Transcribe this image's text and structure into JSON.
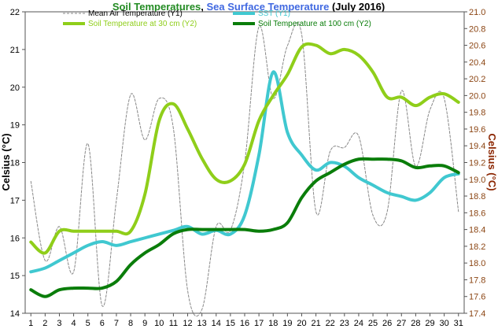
{
  "chart_data": {
    "type": "line",
    "title_parts": [
      {
        "text": "Soil Temperatures",
        "color": "#228b22"
      },
      {
        "text": ", ",
        "color": "#000000"
      },
      {
        "text": "Sea Surface Temperature",
        "color": "#4169e1"
      },
      {
        "text": " (July 2016)",
        "color": "#000000"
      }
    ],
    "ylabel_left": "Celsius (°C)",
    "ylabel_right": "Celsius (°C)",
    "x": [
      1,
      2,
      3,
      4,
      5,
      6,
      7,
      8,
      9,
      10,
      11,
      12,
      13,
      14,
      15,
      16,
      17,
      18,
      19,
      20,
      21,
      22,
      23,
      24,
      25,
      26,
      27,
      28,
      29,
      30,
      31
    ],
    "xlim": [
      0.6,
      31.4
    ],
    "ylim_left": [
      14,
      22
    ],
    "ylim_right": [
      17.4,
      21.0
    ],
    "yticks_left": [
      14,
      15,
      16,
      17,
      18,
      19,
      20,
      21,
      22
    ],
    "yticks_right": [
      "17.4",
      "17.6",
      "17.8",
      "18.0",
      "18.2",
      "18.4",
      "18.6",
      "18.8",
      "19.0",
      "19.2",
      "19.4",
      "19.6",
      "19.8",
      "20.0",
      "20.2",
      "20.4",
      "20.6",
      "20.8",
      "21.0"
    ],
    "legend_position": "top",
    "series": [
      {
        "name": "Mean Air Temperature (Y1)",
        "axis": "left",
        "color": "#888888",
        "dashed": true,
        "values": [
          17.5,
          15.4,
          16.3,
          15.1,
          18.5,
          14.2,
          17.0,
          19.8,
          18.6,
          19.7,
          18.9,
          14.6,
          14.1,
          16.3,
          16.2,
          18.0,
          21.6,
          19.7,
          21.1,
          21.4,
          16.7,
          18.3,
          18.4,
          18.7,
          16.6,
          16.7,
          19.9,
          17.9,
          19.4,
          19.7,
          16.7
        ]
      },
      {
        "name": "SST (Y1)",
        "axis": "left",
        "color": "#40c8d0",
        "dashed": false,
        "values": [
          15.1,
          15.2,
          15.4,
          15.6,
          15.8,
          15.9,
          15.8,
          15.9,
          16.0,
          16.1,
          16.2,
          16.3,
          16.1,
          16.2,
          16.1,
          16.6,
          18.2,
          20.4,
          18.8,
          18.2,
          17.8,
          18.0,
          17.9,
          17.6,
          17.4,
          17.2,
          17.1,
          17.0,
          17.2,
          17.6,
          17.7
        ]
      },
      {
        "name": "Soil Temperature at 30 cm (Y2)",
        "axis": "right",
        "color": "#8fce1a",
        "dashed": false,
        "values": [
          18.25,
          18.12,
          18.38,
          18.38,
          18.38,
          18.38,
          18.38,
          18.38,
          18.82,
          19.7,
          19.9,
          19.6,
          19.25,
          19.0,
          18.98,
          19.18,
          19.7,
          20.0,
          20.25,
          20.58,
          20.6,
          20.5,
          20.55,
          20.48,
          20.28,
          19.98,
          19.98,
          19.88,
          19.98,
          20.02,
          19.92
        ]
      },
      {
        "name": "Soil Temperature at 100 cm (Y2)",
        "axis": "right",
        "color": "#0a7d0a",
        "dashed": false,
        "values": [
          17.68,
          17.6,
          17.68,
          17.7,
          17.7,
          17.7,
          17.78,
          17.98,
          18.12,
          18.22,
          18.35,
          18.4,
          18.4,
          18.4,
          18.4,
          18.4,
          18.38,
          18.4,
          18.48,
          18.78,
          18.98,
          19.08,
          19.18,
          19.24,
          19.24,
          19.24,
          19.22,
          19.14,
          19.16,
          19.16,
          19.08
        ]
      }
    ]
  }
}
